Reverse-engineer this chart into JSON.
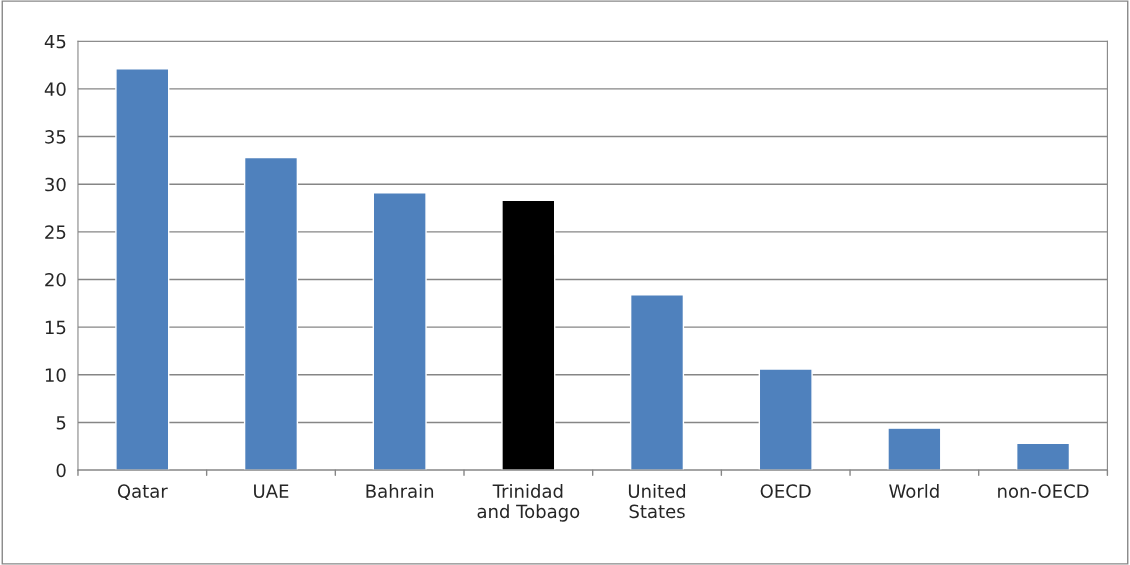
{
  "chart_data": {
    "type": "bar",
    "categories": [
      "Qatar",
      "UAE",
      "Bahrain",
      "Trinidad\nand Tobago",
      "United\nStates",
      "OECD",
      "World",
      "non-OECD"
    ],
    "values": [
      42.1,
      32.8,
      29.1,
      28.3,
      18.4,
      10.6,
      4.4,
      2.8
    ],
    "colors": [
      "#4f81bd",
      "#4f81bd",
      "#4f81bd",
      "#000000",
      "#4f81bd",
      "#4f81bd",
      "#4f81bd",
      "#4f81bd"
    ],
    "ylim": [
      0,
      45
    ],
    "yticks": [
      0,
      5,
      10,
      15,
      20,
      25,
      30,
      35,
      40,
      45
    ],
    "grid": "y",
    "legend": false
  }
}
